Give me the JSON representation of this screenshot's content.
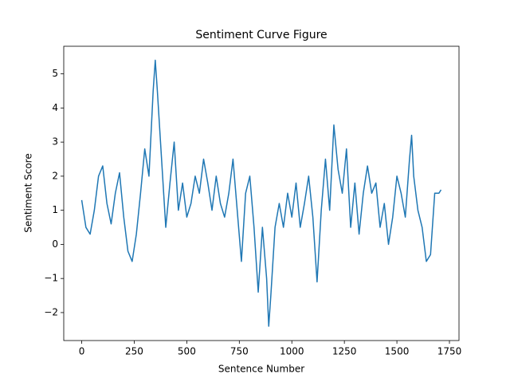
{
  "chart_data": {
    "type": "line",
    "title": "Sentiment Curve Figure",
    "x_label": "Sentence Number",
    "y_label": "Sentiment Score",
    "x": [
      0,
      20,
      40,
      60,
      80,
      100,
      120,
      140,
      160,
      180,
      200,
      220,
      240,
      260,
      280,
      300,
      320,
      340,
      350,
      360,
      380,
      400,
      420,
      440,
      460,
      480,
      500,
      520,
      540,
      560,
      580,
      600,
      620,
      640,
      660,
      680,
      700,
      720,
      740,
      760,
      780,
      800,
      820,
      840,
      860,
      880,
      890,
      900,
      920,
      940,
      960,
      980,
      1000,
      1020,
      1040,
      1060,
      1080,
      1100,
      1120,
      1140,
      1160,
      1180,
      1200,
      1220,
      1240,
      1260,
      1280,
      1300,
      1320,
      1340,
      1360,
      1380,
      1400,
      1420,
      1440,
      1460,
      1480,
      1500,
      1520,
      1540,
      1560,
      1570,
      1580,
      1600,
      1620,
      1640,
      1660,
      1680,
      1700,
      1710
    ],
    "series": [
      {
        "name": "sentiment",
        "color": "#1f77b4",
        "values": [
          1.3,
          0.5,
          0.3,
          1.0,
          2.0,
          2.3,
          1.2,
          0.6,
          1.5,
          2.1,
          0.8,
          -0.2,
          -0.5,
          0.3,
          1.5,
          2.8,
          2.0,
          4.5,
          5.4,
          4.5,
          2.5,
          0.5,
          1.8,
          3.0,
          1.0,
          1.8,
          0.8,
          1.2,
          2.0,
          1.5,
          2.5,
          1.8,
          1.0,
          2.0,
          1.2,
          0.8,
          1.5,
          2.5,
          1.0,
          -0.5,
          1.5,
          2.0,
          0.5,
          -1.4,
          0.5,
          -1.0,
          -2.4,
          -1.5,
          0.5,
          1.2,
          0.5,
          1.5,
          0.8,
          1.8,
          0.5,
          1.2,
          2.0,
          0.8,
          -1.1,
          1.0,
          2.5,
          1.0,
          3.5,
          2.2,
          1.5,
          2.8,
          0.5,
          1.8,
          0.3,
          1.5,
          2.3,
          1.5,
          1.8,
          0.5,
          1.2,
          0.0,
          0.8,
          2.0,
          1.5,
          0.8,
          2.5,
          3.2,
          2.0,
          1.0,
          0.5,
          -0.5,
          -0.3,
          1.5,
          1.5,
          1.6
        ]
      }
    ],
    "xlim": [
      -85.5,
      1795.5
    ],
    "ylim": [
      -2.82,
      5.81
    ],
    "xticks": [
      0,
      250,
      500,
      750,
      1000,
      1250,
      1500,
      1750
    ],
    "yticks": [
      {
        "value": -2,
        "label": "−2"
      },
      {
        "value": -1,
        "label": "−1"
      },
      0,
      1,
      2,
      3,
      4,
      5
    ]
  }
}
